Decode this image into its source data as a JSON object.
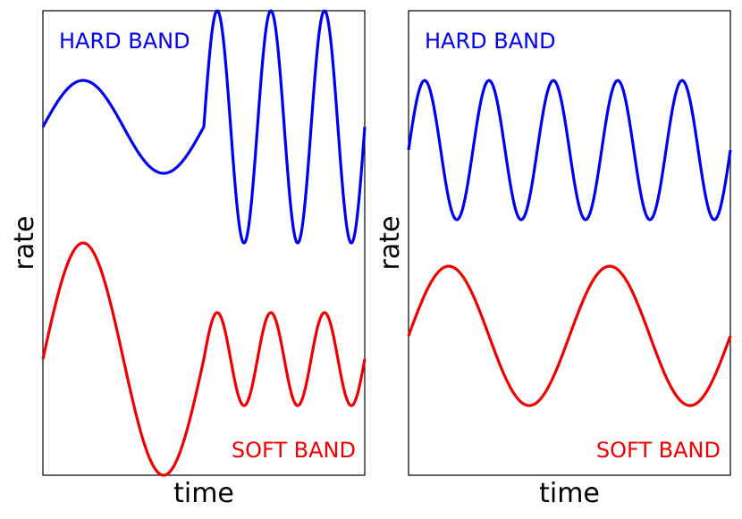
{
  "chart_data": [
    {
      "type": "line",
      "xlabel": "time",
      "ylabel": "rate",
      "x_ticks": false,
      "y_ticks": false,
      "series": [
        {
          "name": "HARD BAND",
          "color": "#0000ee",
          "segments": [
            {
              "x_range": [
                0.0,
                0.5
              ],
              "cycles": 1.0,
              "phase": 0.0,
              "amplitude": 0.1,
              "offset": 0.75
            },
            {
              "x_range": [
                0.5,
                1.0
              ],
              "cycles": 3.0,
              "phase": 0.0,
              "amplitude": 0.25,
              "offset": 0.75
            }
          ]
        },
        {
          "name": "SOFT BAND",
          "color": "#ee0000",
          "segments": [
            {
              "x_range": [
                0.0,
                0.5
              ],
              "cycles": 1.0,
              "phase": 0.0,
              "amplitude": 0.25,
              "offset": 0.25
            },
            {
              "x_range": [
                0.5,
                1.0
              ],
              "cycles": 3.0,
              "phase": 0.0,
              "amplitude": 0.1,
              "offset": 0.25
            }
          ]
        }
      ]
    },
    {
      "type": "line",
      "xlabel": "time",
      "ylabel": "rate",
      "x_ticks": false,
      "y_ticks": false,
      "series": [
        {
          "name": "HARD BAND",
          "color": "#0000ee",
          "segments": [
            {
              "x_range": [
                0.0,
                1.0
              ],
              "cycles": 5.0,
              "phase": 0.0,
              "amplitude": 0.15,
              "offset": 0.7
            }
          ]
        },
        {
          "name": "SOFT BAND",
          "color": "#ee0000",
          "segments": [
            {
              "x_range": [
                0.0,
                1.0
              ],
              "cycles": 2.0,
              "phase": 0.0,
              "amplitude": 0.15,
              "offset": 0.3
            }
          ]
        }
      ]
    }
  ]
}
